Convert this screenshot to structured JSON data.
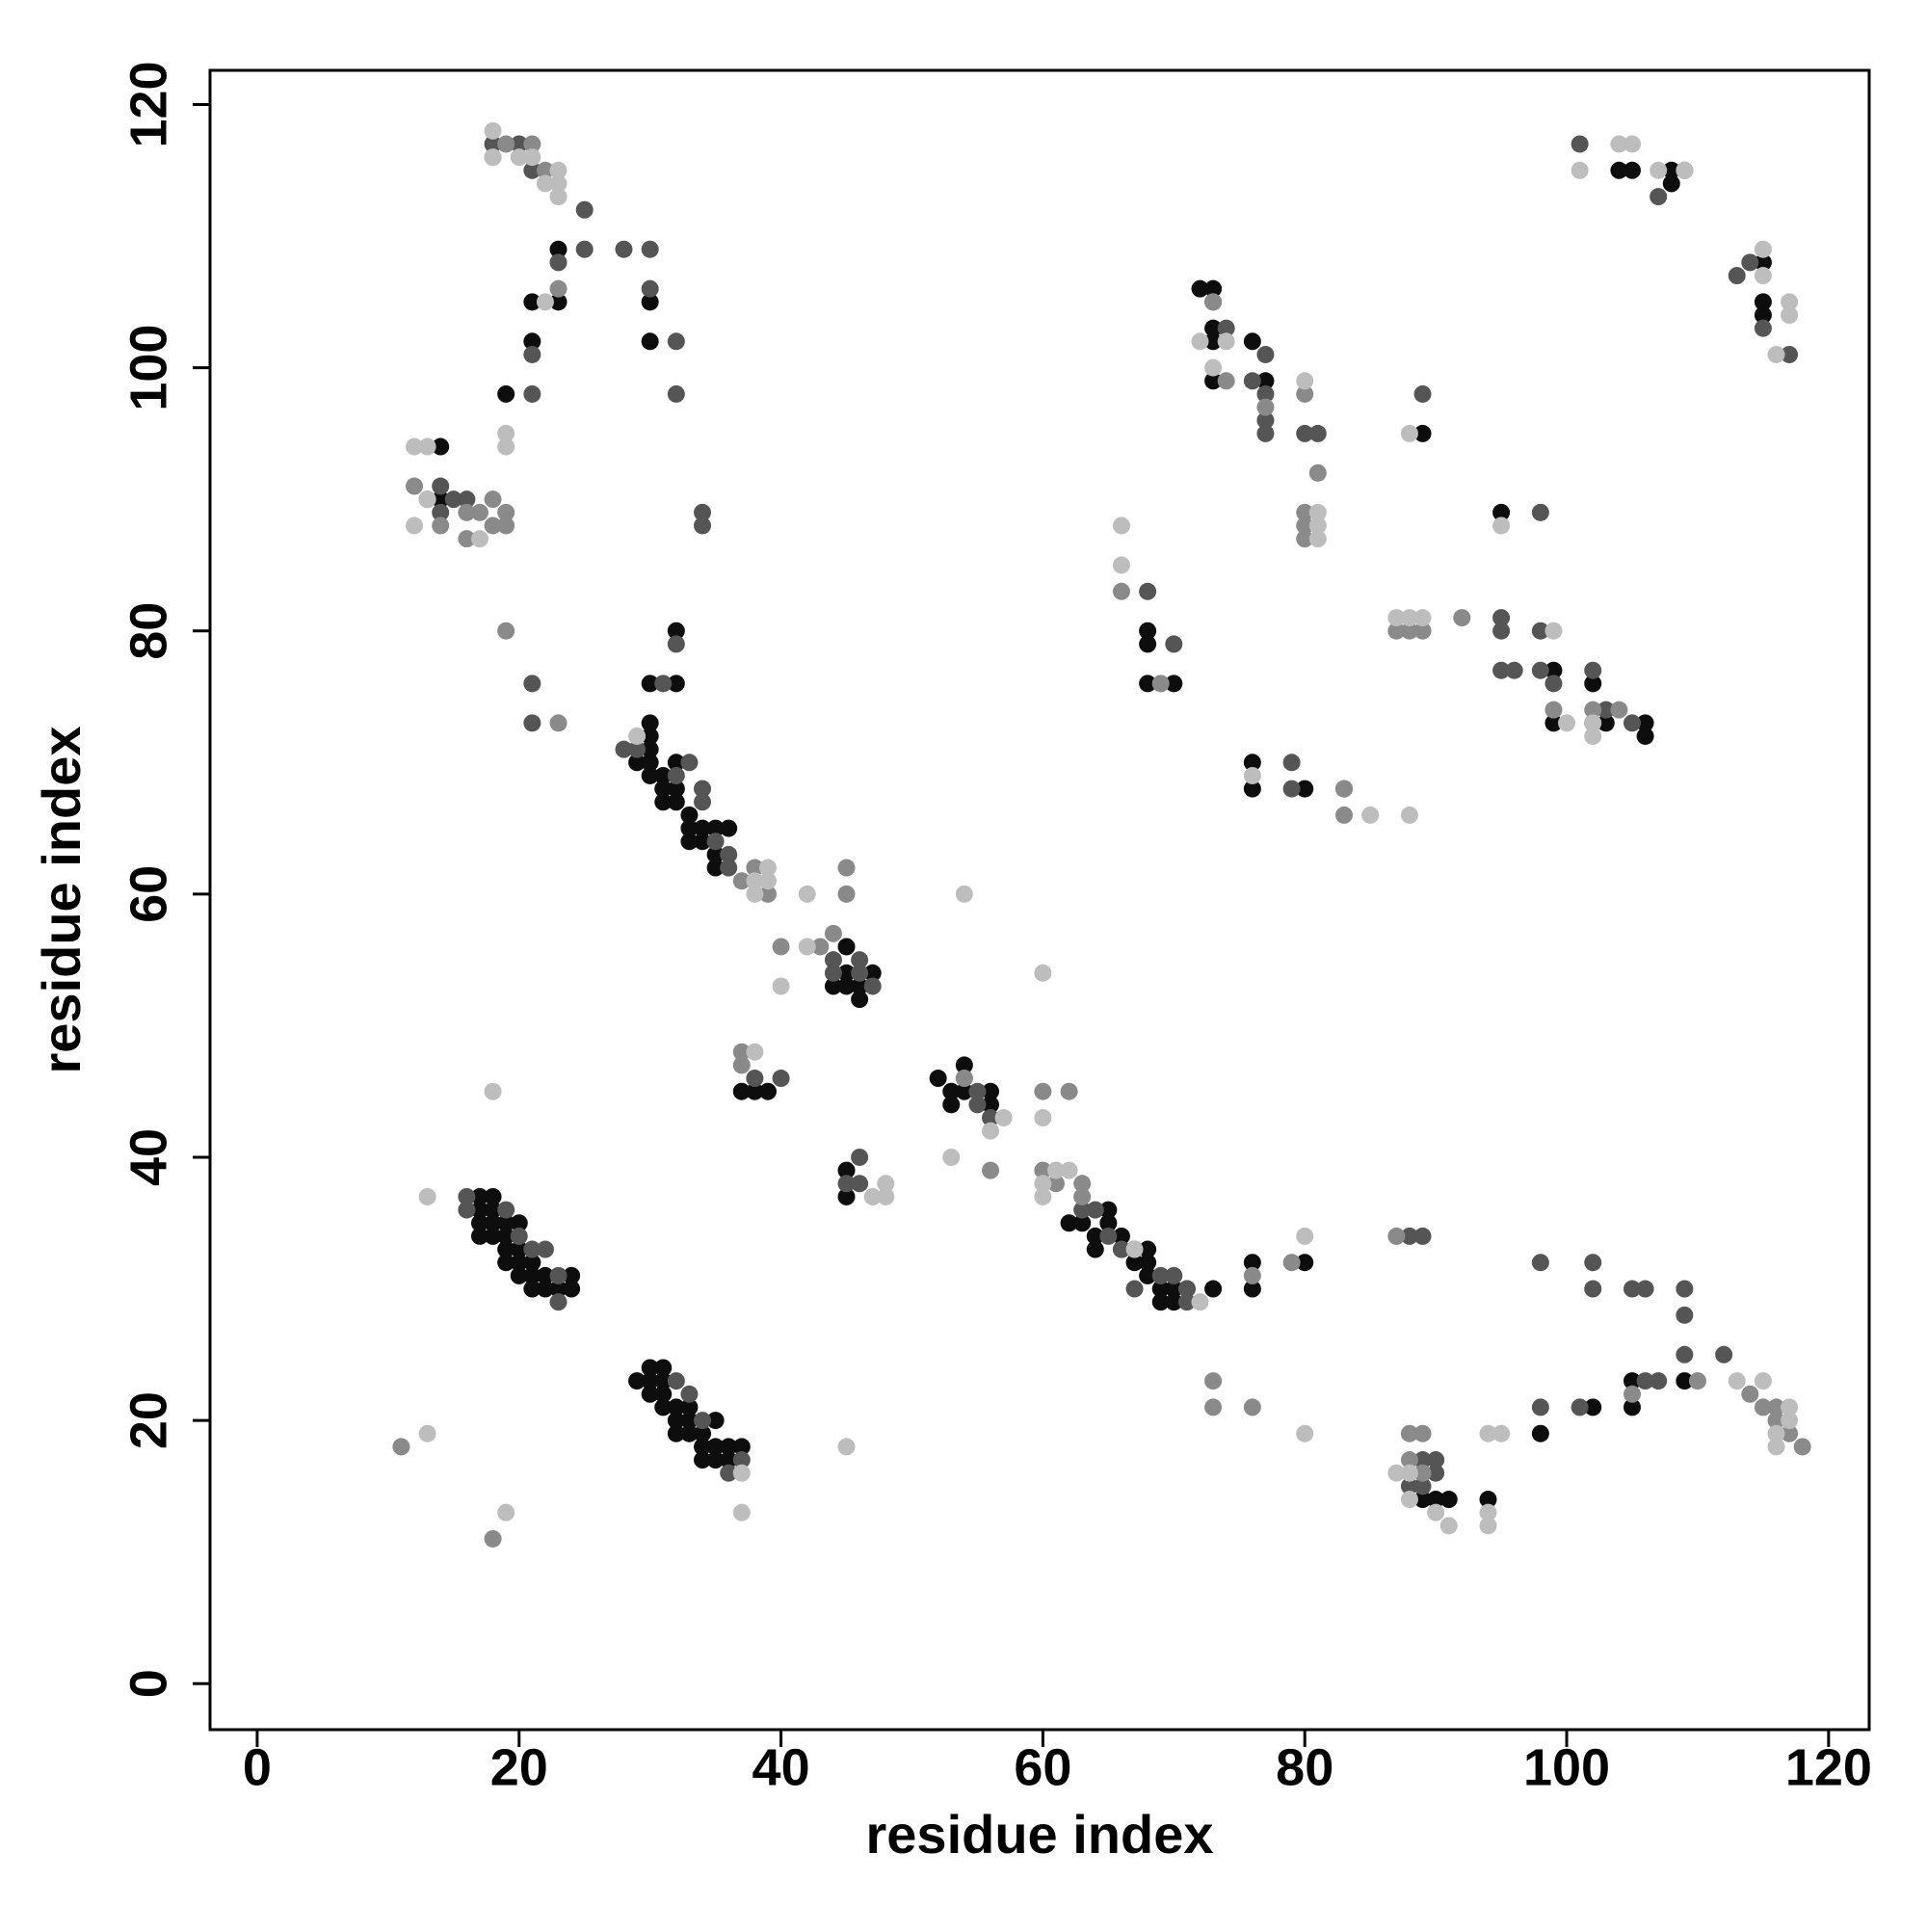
{
  "chart_data": {
    "type": "scatter",
    "x_label": "residue index",
    "y_label": "residue index",
    "xlim": [
      -3.6,
      123.1
    ],
    "ylim": [
      -3.5,
      122.6
    ],
    "xticks": [
      0,
      20,
      40,
      60,
      80,
      100,
      120
    ],
    "yticks": [
      0,
      20,
      40,
      60,
      80,
      100,
      120
    ],
    "grid": false,
    "series": [
      {
        "color": "#0d0d0d",
        "x": [
          17,
          18,
          17,
          18,
          17,
          18,
          17,
          18,
          19,
          19,
          20,
          19,
          20,
          21,
          20,
          21,
          21,
          22,
          22,
          23,
          24,
          24,
          19,
          20,
          30,
          31,
          30,
          29,
          30,
          31,
          31,
          32,
          32,
          33,
          32,
          33,
          34,
          34,
          35,
          34,
          35,
          36,
          36,
          37,
          35,
          33,
          31,
          30,
          29,
          30,
          30,
          31,
          31,
          32,
          31,
          32,
          33,
          33,
          34,
          34,
          33,
          35,
          35,
          36,
          35,
          32,
          30,
          30,
          44,
          45,
          46,
          46,
          47,
          45,
          45,
          37,
          38,
          39,
          52,
          53,
          53,
          54,
          54,
          56,
          56,
          62,
          63,
          64,
          64,
          65,
          65,
          66,
          67,
          67,
          68,
          68,
          69,
          69,
          70,
          70,
          71,
          73,
          76,
          76,
          80,
          66,
          68,
          45,
          45,
          23,
          23,
          21,
          21,
          19,
          30,
          30,
          30,
          32,
          32,
          14,
          14,
          72,
          73,
          73,
          73,
          73,
          76,
          77,
          89,
          68,
          68,
          68,
          70,
          76,
          76,
          80,
          95,
          99,
          99,
          102,
          102,
          103,
          106,
          106,
          104,
          105,
          108,
          108,
          115,
          115,
          115,
          90,
          91,
          94,
          98,
          102,
          105,
          105,
          109,
          89
        ],
        "values": [
          37,
          37,
          36,
          36,
          35,
          35,
          34,
          34,
          34,
          33,
          33,
          32,
          32,
          32,
          31,
          31,
          30,
          30,
          31,
          30,
          31,
          30,
          35,
          35,
          24,
          24,
          23,
          23,
          22,
          22,
          21,
          21,
          20,
          20,
          19,
          19,
          19,
          18,
          18,
          17,
          17,
          17,
          18,
          18,
          20,
          21,
          23,
          73,
          70,
          70,
          69,
          69,
          68,
          68,
          67,
          67,
          66,
          65,
          65,
          64,
          64,
          63,
          62,
          65,
          65,
          70,
          71,
          72,
          53,
          53,
          53,
          52,
          54,
          56,
          54,
          45,
          45,
          45,
          46,
          45,
          44,
          47,
          45,
          45,
          44,
          35,
          35,
          34,
          33,
          35,
          36,
          34,
          33,
          32,
          31,
          32,
          30,
          29,
          29,
          30,
          30,
          30,
          30,
          32,
          32,
          33,
          33,
          39,
          37,
          109,
          105,
          105,
          102,
          98,
          105,
          102,
          76,
          76,
          80,
          94,
          90,
          106,
          106,
          103,
          102,
          99,
          102,
          99,
          95,
          80,
          79,
          76,
          76,
          70,
          68,
          68,
          89,
          77,
          73,
          76,
          73,
          73,
          73,
          72,
          115,
          115,
          115,
          114,
          108,
          105,
          104,
          14,
          14,
          14,
          19,
          21,
          21,
          23,
          23,
          14
        ]
      },
      {
        "color": "#555555",
        "x": [
          16,
          16,
          21,
          22,
          23,
          23,
          19,
          20,
          29,
          28,
          33,
          32,
          34,
          34,
          35,
          36,
          36,
          33,
          34,
          36,
          37,
          32,
          28,
          30,
          30,
          25,
          25,
          23,
          21,
          21,
          32,
          32,
          21,
          18,
          20,
          14,
          13,
          14,
          15,
          16,
          34,
          34,
          21,
          21,
          32,
          31,
          44,
          44,
          46,
          47,
          46,
          46,
          45,
          46,
          38,
          40,
          55,
          56,
          55,
          54,
          63,
          64,
          65,
          66,
          69,
          70,
          71,
          71,
          67,
          73,
          74,
          76,
          77,
          77,
          77,
          77,
          80,
          81,
          89,
          68,
          70,
          79,
          79,
          83,
          88,
          89,
          98,
          95,
          95,
          95,
          96,
          98,
          98,
          99,
          102,
          103,
          105,
          101,
          101,
          102,
          102,
          105,
          106,
          109,
          109,
          109,
          112,
          98,
          98,
          106,
          107,
          113,
          114,
          109,
          107,
          117,
          115,
          89,
          89,
          90,
          90,
          89,
          88
        ],
        "values": [
          36,
          37,
          33,
          33,
          31,
          29,
          36,
          34,
          71,
          71,
          70,
          69,
          68,
          67,
          64,
          62,
          63,
          22,
          20,
          16,
          17,
          23,
          109,
          109,
          106,
          109,
          112,
          108,
          101,
          98,
          102,
          98,
          115,
          117,
          117,
          91,
          90,
          89,
          90,
          90,
          88,
          89,
          76,
          73,
          79,
          76,
          54,
          55,
          55,
          53,
          40,
          38,
          38,
          54,
          46,
          46,
          44,
          43,
          45,
          46,
          36,
          36,
          34,
          33,
          31,
          31,
          29,
          30,
          30,
          105,
          103,
          99,
          101,
          98,
          96,
          95,
          95,
          95,
          98,
          83,
          79,
          70,
          68,
          68,
          34,
          34,
          89,
          81,
          80,
          77,
          77,
          80,
          77,
          76,
          77,
          74,
          73,
          117,
          21,
          32,
          30,
          30,
          30,
          30,
          28,
          25,
          25,
          32,
          21,
          23,
          23,
          107,
          108,
          115,
          113,
          101,
          103,
          16,
          15,
          16,
          17,
          17,
          15
        ]
      },
      {
        "color": "#8a8a8a",
        "x": [
          18,
          11,
          19,
          23,
          19,
          19,
          18,
          17,
          18,
          16,
          16,
          12,
          14,
          23,
          22,
          18,
          19,
          21,
          37,
          37,
          43,
          44,
          45,
          45,
          40,
          39,
          38,
          37,
          60,
          60,
          61,
          62,
          63,
          63,
          66,
          69,
          73,
          73,
          73,
          76,
          74,
          76,
          77,
          79,
          80,
          80,
          80,
          80,
          81,
          83,
          83,
          87,
          87,
          88,
          89,
          88,
          89,
          88,
          89,
          92,
          99,
          102,
          104,
          105,
          110,
          114,
          115,
          116,
          116,
          117,
          118,
          54,
          56
        ],
        "values": [
          11,
          18,
          80,
          73,
          88,
          89,
          88,
          89,
          90,
          87,
          89,
          91,
          88,
          106,
          115,
          116,
          117,
          117,
          48,
          47,
          56,
          57,
          60,
          62,
          56,
          60,
          62,
          61,
          45,
          39,
          38,
          45,
          37,
          38,
          83,
          76,
          105,
          23,
          21,
          21,
          99,
          31,
          97,
          32,
          87,
          88,
          89,
          98,
          92,
          68,
          66,
          80,
          34,
          80,
          80,
          19,
          19,
          17,
          16,
          81,
          74,
          74,
          74,
          22,
          23,
          22,
          21,
          20,
          21,
          19,
          18,
          46,
          39
        ]
      },
      {
        "color": "#bdbdbd",
        "x": [
          12,
          13,
          13,
          12,
          13,
          13,
          17,
          18,
          19,
          19,
          19,
          18,
          18,
          20,
          21,
          22,
          23,
          23,
          23,
          22,
          29,
          37,
          37,
          38,
          38,
          39,
          39,
          38,
          40,
          42,
          42,
          45,
          47,
          48,
          48,
          53,
          54,
          56,
          57,
          60,
          60,
          60,
          60,
          61,
          62,
          66,
          66,
          67,
          72,
          72,
          73,
          74,
          76,
          80,
          80,
          80,
          81,
          81,
          81,
          85,
          88,
          87,
          88,
          89,
          88,
          88,
          87,
          88,
          90,
          91,
          94,
          94,
          94,
          95,
          95,
          99,
          100,
          101,
          102,
          102,
          104,
          105,
          107,
          109,
          113,
          115,
          115,
          115,
          116,
          117,
          117,
          116,
          116,
          117,
          117
        ],
        "values": [
          94,
          94,
          90,
          88,
          37,
          19,
          87,
          45,
          94,
          95,
          13,
          118,
          116,
          116,
          116,
          114,
          114,
          115,
          113,
          105,
          72,
          13,
          16,
          48,
          60,
          61,
          62,
          61,
          53,
          60,
          56,
          18,
          37,
          37,
          38,
          40,
          60,
          42,
          43,
          54,
          43,
          38,
          37,
          39,
          39,
          88,
          85,
          33,
          102,
          29,
          100,
          102,
          69,
          99,
          19,
          34,
          89,
          88,
          87,
          66,
          66,
          81,
          81,
          81,
          95,
          14,
          16,
          16,
          13,
          12,
          12,
          13,
          19,
          19,
          88,
          80,
          73,
          115,
          72,
          73,
          117,
          117,
          115,
          115,
          23,
          23,
          109,
          107,
          101,
          105,
          104,
          19,
          18,
          21,
          20
        ]
      }
    ]
  }
}
